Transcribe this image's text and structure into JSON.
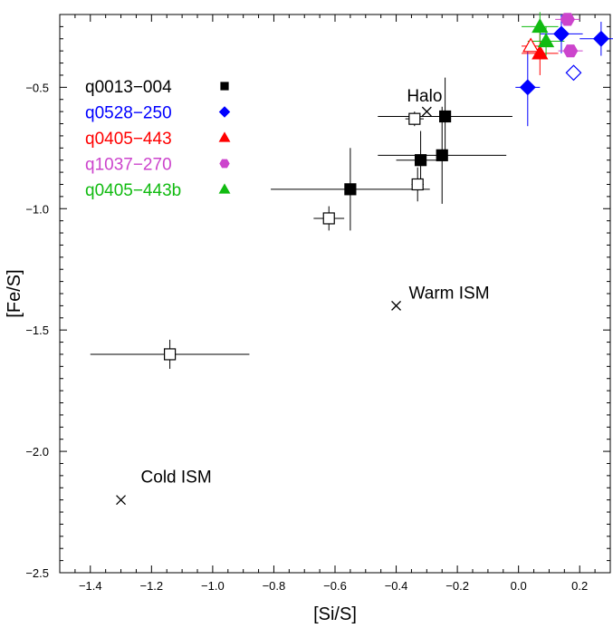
{
  "chart_data": {
    "type": "scatter",
    "xlabel": "[Si/S]",
    "ylabel": "[Fe/S]",
    "xlim": [
      -1.5,
      0.3
    ],
    "ylim": [
      -2.5,
      -0.2
    ],
    "x_ticks": [
      "-1.4",
      "-1.2",
      "-1.0",
      "-0.8",
      "-0.6",
      "-0.4",
      "-0.2",
      "0.0",
      "0.2"
    ],
    "y_ticks": [
      "-2.5",
      "-2.0",
      "-1.5",
      "-1.0",
      "-0.5"
    ],
    "grid": false,
    "legend_position": "top-left",
    "series": [
      {
        "name": "q0013−004",
        "color": "#000000",
        "marker": "square",
        "points": [
          {
            "x": -0.55,
            "y": -0.92,
            "xerr": 0.26,
            "yerr": 0.17,
            "filled": true
          },
          {
            "x": -0.32,
            "y": -0.8,
            "xerr": 0.08,
            "yerr": 0.12,
            "filled": true
          },
          {
            "x": -0.24,
            "y": -0.62,
            "xerr": 0.22,
            "yerr": 0.16,
            "filled": true
          },
          {
            "x": -0.25,
            "y": -0.78,
            "xerr": 0.21,
            "yerr": 0.2,
            "filled": true
          },
          {
            "x": -0.62,
            "y": -1.04,
            "xerr": 0.05,
            "yerr": 0.05,
            "filled": false
          },
          {
            "x": -0.34,
            "y": -0.63,
            "xerr": 0.03,
            "yerr": 0.03,
            "filled": false
          },
          {
            "x": -0.33,
            "y": -0.9,
            "xerr": 0.02,
            "yerr": 0.07,
            "filled": false
          },
          {
            "x": -1.14,
            "y": -1.6,
            "xerr": 0.26,
            "yerr": 0.06,
            "filled": false
          }
        ]
      },
      {
        "name": "q0528−250",
        "color": "#0000ff",
        "marker": "diamond",
        "points": [
          {
            "x": 0.03,
            "y": -0.5,
            "xerr": 0.04,
            "yerr": 0.16,
            "filled": true
          },
          {
            "x": 0.14,
            "y": -0.28,
            "xerr": 0.07,
            "yerr": 0.08,
            "filled": true
          },
          {
            "x": 0.27,
            "y": -0.3,
            "xerr": 0.07,
            "yerr": 0.07,
            "filled": true
          },
          {
            "x": 0.18,
            "y": -0.44,
            "xerr": 0.0,
            "yerr": 0.0,
            "filled": false
          }
        ]
      },
      {
        "name": "q0405−443",
        "color": "#ff0000",
        "marker": "triangle",
        "points": [
          {
            "x": 0.07,
            "y": -0.36,
            "xerr": 0.06,
            "yerr": 0.09,
            "filled": true
          },
          {
            "x": 0.04,
            "y": -0.33,
            "xerr": 0.03,
            "yerr": 0.0,
            "filled": false
          }
        ]
      },
      {
        "name": "q1037−270",
        "color": "#cc44cc",
        "marker": "hexagon",
        "points": [
          {
            "x": 0.16,
            "y": -0.22,
            "xerr": 0.04,
            "yerr": 0.0,
            "filled": true
          },
          {
            "x": 0.17,
            "y": -0.35,
            "xerr": 0.04,
            "yerr": 0.0,
            "filled": true
          }
        ]
      },
      {
        "name": "q0405−443b",
        "color": "#11bb11",
        "marker": "triangle",
        "points": [
          {
            "x": 0.07,
            "y": -0.25,
            "xerr": 0.06,
            "yerr": 0.06,
            "filled": true
          },
          {
            "x": 0.09,
            "y": -0.31,
            "xerr": 0.06,
            "yerr": 0.06,
            "filled": true
          }
        ]
      }
    ],
    "reference_points": [
      {
        "label": "Halo",
        "x": -0.3,
        "y": -0.6
      },
      {
        "label": "Warm ISM",
        "x": -0.4,
        "y": -1.4
      },
      {
        "label": "Cold ISM",
        "x": -1.3,
        "y": -2.2
      }
    ]
  }
}
